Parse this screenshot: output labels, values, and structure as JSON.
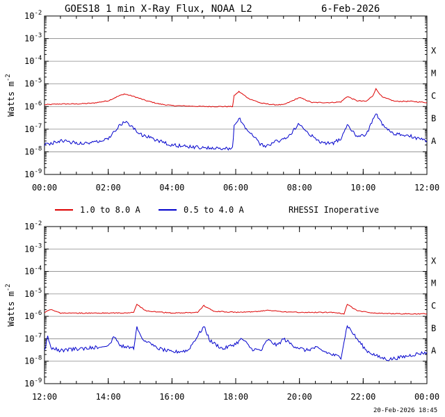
{
  "title": {
    "main": "GOES18 1 min X-Ray Flux, NOAA L2",
    "date": "6-Feb-2026"
  },
  "legend": {
    "long": "1.0 to 8.0 A",
    "short": "0.5 to 4.0 A",
    "note": "RHESSI Inoperative"
  },
  "footer": "20-Feb-2026 18:45",
  "colors": {
    "long": "#dd0000",
    "short": "#0000cc",
    "grid": "#888888"
  },
  "chart_data": [
    {
      "type": "line",
      "ylabel": "Watts m-2",
      "y_scale": "log",
      "ylim_exp": [
        -9,
        -2
      ],
      "ytick_labels": [
        "10-9",
        "10-8",
        "10-7",
        "10-6",
        "10-5",
        "10-4",
        "10-3",
        "10-2"
      ],
      "flare_class_labels": [
        "A",
        "B",
        "C",
        "M",
        "X"
      ],
      "x_unit": "hours UT",
      "xlim": [
        0,
        12
      ],
      "xtick_labels": [
        "00:00",
        "02:00",
        "04:00",
        "06:00",
        "08:00",
        "10:00",
        "12:00"
      ],
      "grid": "horizontal",
      "series": [
        {
          "name": "1.0 to 8.0 A",
          "points": [
            [
              0,
              1.2e-06
            ],
            [
              0.5,
              1.3e-06
            ],
            [
              1,
              1.3e-06
            ],
            [
              1.5,
              1.4e-06
            ],
            [
              2,
              1.8e-06
            ],
            [
              2.3,
              2.8e-06
            ],
            [
              2.5,
              3.6e-06
            ],
            [
              2.8,
              2.8e-06
            ],
            [
              3.2,
              1.8e-06
            ],
            [
              3.6,
              1.3e-06
            ],
            [
              4,
              1.1e-06
            ],
            [
              5,
              1e-06
            ],
            [
              5.9,
              1e-06
            ],
            [
              5.95,
              3e-06
            ],
            [
              6.1,
              4.6e-06
            ],
            [
              6.4,
              2.3e-06
            ],
            [
              6.8,
              1.4e-06
            ],
            [
              7.2,
              1.2e-06
            ],
            [
              7.5,
              1.2e-06
            ],
            [
              7.7,
              1.6e-06
            ],
            [
              8.0,
              2.5e-06
            ],
            [
              8.4,
              1.5e-06
            ],
            [
              9,
              1.5e-06
            ],
            [
              9.3,
              1.6e-06
            ],
            [
              9.5,
              2.8e-06
            ],
            [
              9.8,
              1.8e-06
            ],
            [
              10.1,
              1.7e-06
            ],
            [
              10.3,
              3e-06
            ],
            [
              10.4,
              6e-06
            ],
            [
              10.6,
              2.6e-06
            ],
            [
              11,
              1.7e-06
            ],
            [
              11.5,
              1.7e-06
            ],
            [
              12,
              1.5e-06
            ]
          ]
        },
        {
          "name": "0.5 to 4.0 A",
          "points": [
            [
              0,
              2e-08
            ],
            [
              0.5,
              3e-08
            ],
            [
              1,
              2.5e-08
            ],
            [
              1.5,
              2.5e-08
            ],
            [
              2,
              4e-08
            ],
            [
              2.3,
              1.2e-07
            ],
            [
              2.5,
              2.2e-07
            ],
            [
              2.7,
              1.5e-07
            ],
            [
              3,
              6e-08
            ],
            [
              3.6,
              3e-08
            ],
            [
              4,
              2e-08
            ],
            [
              4.5,
              1.7e-08
            ],
            [
              5,
              1.5e-08
            ],
            [
              5.9,
              1.4e-08
            ],
            [
              5.95,
              1.5e-07
            ],
            [
              6.1,
              3e-07
            ],
            [
              6.4,
              8e-08
            ],
            [
              6.8,
              2e-08
            ],
            [
              7,
              1.8e-08
            ],
            [
              7.3,
              3e-08
            ],
            [
              7.5,
              3.5e-08
            ],
            [
              7.7,
              6e-08
            ],
            [
              8.0,
              1.7e-07
            ],
            [
              8.3,
              6e-08
            ],
            [
              8.7,
              2.5e-08
            ],
            [
              9.1,
              2.5e-08
            ],
            [
              9.3,
              4e-08
            ],
            [
              9.5,
              1.7e-07
            ],
            [
              9.8,
              5e-08
            ],
            [
              10.1,
              6e-08
            ],
            [
              10.3,
              2.5e-07
            ],
            [
              10.4,
              5.5e-07
            ],
            [
              10.6,
              1.5e-07
            ],
            [
              11,
              6e-08
            ],
            [
              11.5,
              5e-08
            ],
            [
              12,
              3e-08
            ]
          ]
        }
      ]
    },
    {
      "type": "line",
      "ylabel": "Watts m-2",
      "y_scale": "log",
      "ylim_exp": [
        -9,
        -2
      ],
      "ytick_labels": [
        "10-9",
        "10-8",
        "10-7",
        "10-6",
        "10-5",
        "10-4",
        "10-3",
        "10-2"
      ],
      "flare_class_labels": [
        "A",
        "B",
        "C",
        "M",
        "X"
      ],
      "x_unit": "hours UT",
      "xlim": [
        12,
        24
      ],
      "xtick_labels": [
        "12:00",
        "14:00",
        "16:00",
        "18:00",
        "20:00",
        "22:00",
        "00:00"
      ],
      "grid": "horizontal",
      "series": [
        {
          "name": "1.0 to 8.0 A",
          "points": [
            [
              12,
              1.5e-06
            ],
            [
              12.2,
              2e-06
            ],
            [
              12.5,
              1.4e-06
            ],
            [
              13.5,
              1.4e-06
            ],
            [
              14.5,
              1.4e-06
            ],
            [
              14.8,
              1.5e-06
            ],
            [
              14.9,
              3.5e-06
            ],
            [
              15.2,
              1.7e-06
            ],
            [
              16,
              1.4e-06
            ],
            [
              16.8,
              1.5e-06
            ],
            [
              17,
              3e-06
            ],
            [
              17.3,
              1.7e-06
            ],
            [
              18,
              1.5e-06
            ],
            [
              18.6,
              1.6e-06
            ],
            [
              19,
              1.9e-06
            ],
            [
              19.5,
              1.6e-06
            ],
            [
              20,
              1.5e-06
            ],
            [
              21,
              1.5e-06
            ],
            [
              21.4,
              1.3e-06
            ],
            [
              21.5,
              3.5e-06
            ],
            [
              21.8,
              1.8e-06
            ],
            [
              22.3,
              1.4e-06
            ],
            [
              23,
              1.3e-06
            ],
            [
              24,
              1.3e-06
            ]
          ]
        },
        {
          "name": "0.5 to 4.0 A",
          "points": [
            [
              12,
              3e-08
            ],
            [
              12.1,
              1.2e-07
            ],
            [
              12.2,
              4e-08
            ],
            [
              12.5,
              3e-08
            ],
            [
              13,
              3.5e-08
            ],
            [
              13.5,
              4e-08
            ],
            [
              14,
              5e-08
            ],
            [
              14.2,
              1.2e-07
            ],
            [
              14.4,
              5e-08
            ],
            [
              14.8,
              4e-08
            ],
            [
              14.9,
              3.5e-07
            ],
            [
              15.1,
              9e-08
            ],
            [
              15.5,
              4e-08
            ],
            [
              16,
              2.5e-08
            ],
            [
              16.5,
              3e-08
            ],
            [
              17,
              3.5e-07
            ],
            [
              17.2,
              8e-08
            ],
            [
              17.6,
              3.5e-08
            ],
            [
              18,
              6e-08
            ],
            [
              18.2,
              1e-07
            ],
            [
              18.5,
              3.5e-08
            ],
            [
              18.8,
              3e-08
            ],
            [
              19,
              9e-08
            ],
            [
              19.3,
              5e-08
            ],
            [
              19.5,
              1e-07
            ],
            [
              19.8,
              5e-08
            ],
            [
              20.2,
              3e-08
            ],
            [
              20.5,
              4e-08
            ],
            [
              21,
              2e-08
            ],
            [
              21.3,
              1.5e-08
            ],
            [
              21.5,
              4e-07
            ],
            [
              21.8,
              1e-07
            ],
            [
              22.1,
              3e-08
            ],
            [
              22.5,
              1.5e-08
            ],
            [
              22.8,
              1.2e-08
            ],
            [
              23.2,
              1.5e-08
            ],
            [
              23.6,
              2e-08
            ],
            [
              24,
              2.5e-08
            ]
          ]
        }
      ]
    }
  ]
}
